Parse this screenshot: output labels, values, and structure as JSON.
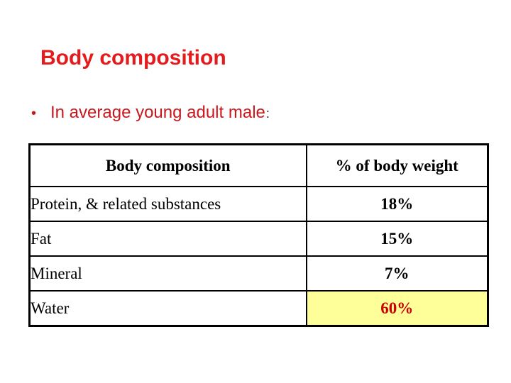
{
  "slide": {
    "title": "Body composition",
    "bullet": {
      "marker": "•",
      "text": "In average young adult male",
      "colon": ":"
    }
  },
  "table": {
    "columns": [
      "Body composition",
      "% of body weight"
    ],
    "rows": [
      {
        "label": "Protein, & related substances",
        "value": "18%",
        "highlight": false
      },
      {
        "label": "Fat",
        "value": "15%",
        "highlight": false
      },
      {
        "label": "Mineral",
        "value": "7%",
        "highlight": false
      },
      {
        "label": "Water",
        "value": "60%",
        "highlight": true
      }
    ]
  },
  "colors": {
    "title_red": "#e31b1d",
    "bullet_red": "#c9181c",
    "highlight_value_red": "#cc0000",
    "highlight_yellow": "#ffff99",
    "table_border": "#000000",
    "background": "#ffffff"
  }
}
